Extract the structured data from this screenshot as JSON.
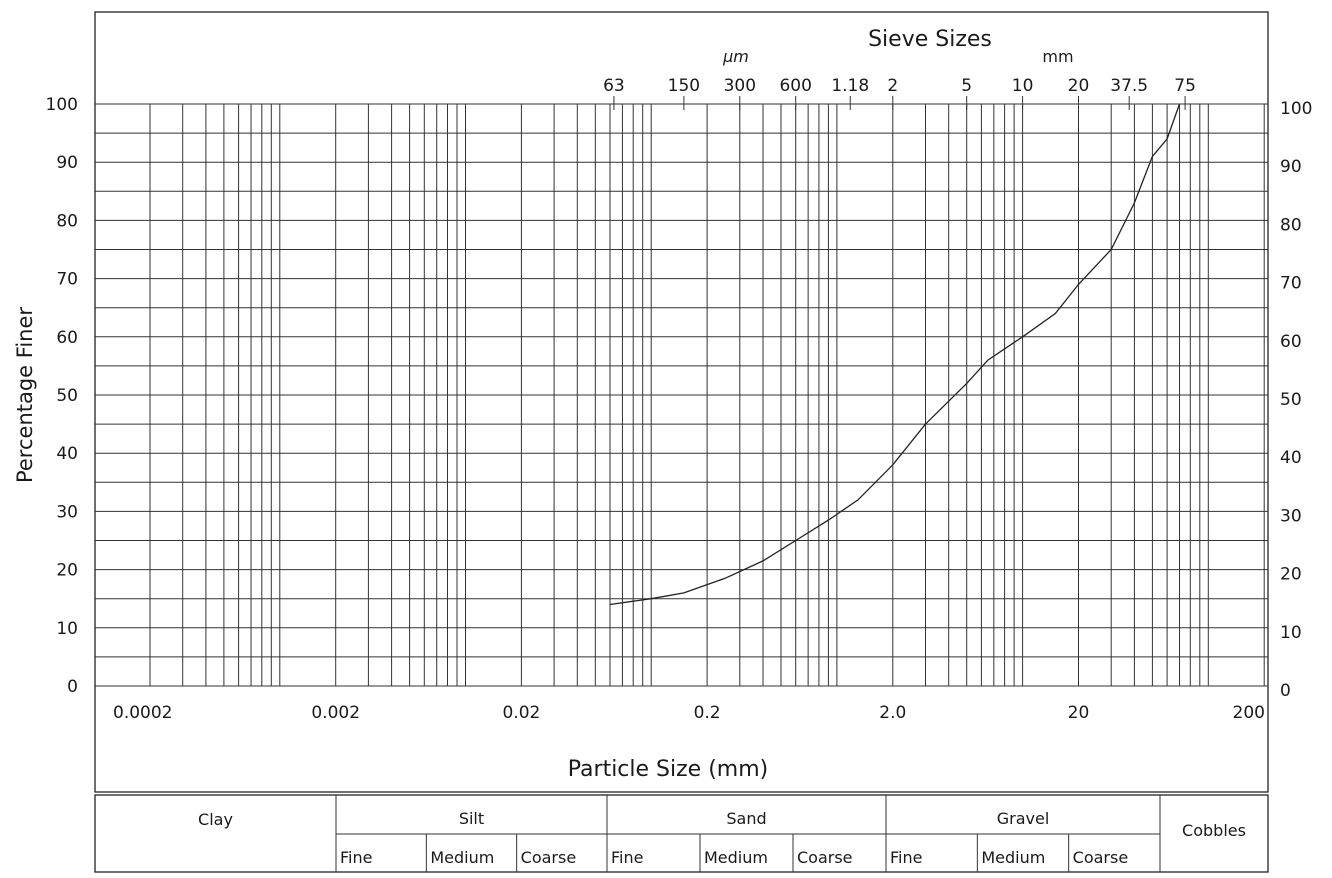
{
  "chart_data": {
    "type": "line",
    "title": "Sieve Sizes",
    "xlabel": "Particle Size  (mm)",
    "ylabel": "Percentage  Finer",
    "x_scale": "log",
    "xlim": [
      0.0001,
      200
    ],
    "ylim": [
      0,
      100
    ],
    "grid": true,
    "x_tick_labels": [
      "0.0002",
      "0.002",
      "0.02",
      "0.2",
      "2.0",
      "20",
      "200"
    ],
    "y_tick_labels": [
      "0",
      "10",
      "20",
      "30",
      "40",
      "50",
      "60",
      "70",
      "80",
      "90",
      "100"
    ],
    "sieve_unit_um": "µm",
    "sieve_unit_mm": "mm",
    "sieve_sizes": [
      {
        "label": "63",
        "mm": 0.063
      },
      {
        "label": "150",
        "mm": 0.15
      },
      {
        "label": "300",
        "mm": 0.3
      },
      {
        "label": "600",
        "mm": 0.6
      },
      {
        "label": "1.18",
        "mm": 1.18
      },
      {
        "label": "2",
        "mm": 2
      },
      {
        "label": "5",
        "mm": 5
      },
      {
        "label": "10",
        "mm": 10
      },
      {
        "label": "20",
        "mm": 20
      },
      {
        "label": "37.5",
        "mm": 37.5
      },
      {
        "label": "75",
        "mm": 75
      }
    ],
    "series": [
      {
        "x": [
          0.06,
          0.1,
          0.15,
          0.25,
          0.4,
          0.6,
          0.9,
          1.3,
          2.0,
          3.0,
          5.0,
          6.5,
          10,
          15,
          20,
          30,
          40,
          50,
          60,
          70
        ],
        "y": [
          14,
          15,
          16,
          18.5,
          21.5,
          25,
          28.5,
          32,
          38,
          45,
          52,
          56,
          60,
          64,
          69,
          75,
          83,
          91,
          94,
          100
        ]
      }
    ],
    "classification": {
      "groups": [
        {
          "name": "Clay",
          "subs": []
        },
        {
          "name": "Silt",
          "subs": [
            "Fine",
            "Medium",
            "Coarse"
          ]
        },
        {
          "name": "Sand",
          "subs": [
            "Fine",
            "Medium",
            "Coarse"
          ]
        },
        {
          "name": "Gravel",
          "subs": [
            "Fine",
            "Medium",
            "Coarse"
          ]
        },
        {
          "name": "Cobbles",
          "subs": []
        }
      ]
    }
  }
}
